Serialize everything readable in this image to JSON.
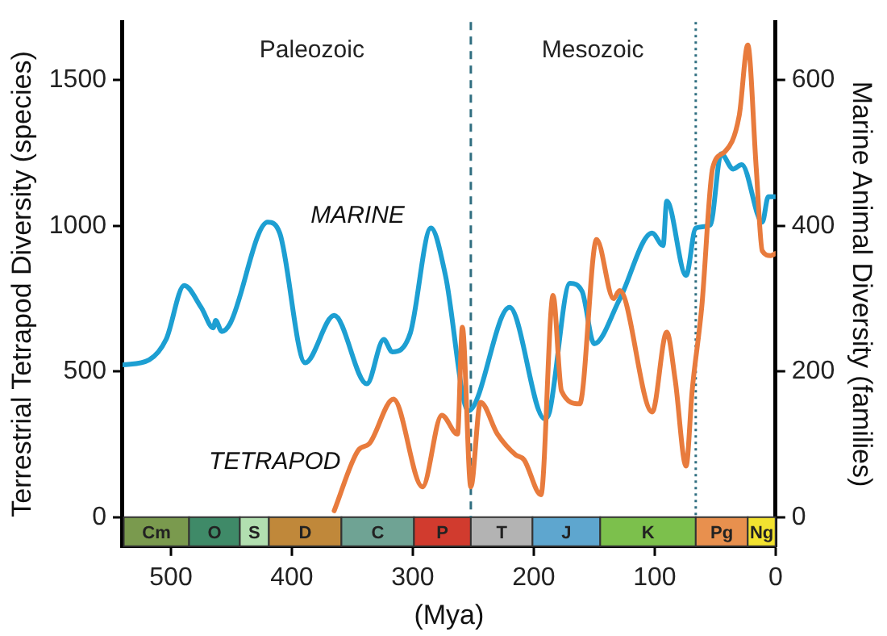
{
  "chart_data": {
    "type": "line",
    "xlabel": "(Mya)",
    "ylabel": "Terrestrial Tetrapod Diversity (species)",
    "y2label": "Marine Animal Diversity (families)",
    "xlim": [
      540,
      0
    ],
    "xticks": [
      500,
      400,
      300,
      200,
      100,
      0
    ],
    "ylim": [
      -100,
      1700
    ],
    "yticks": [
      0,
      500,
      1000,
      1500
    ],
    "y2lim": [
      -40,
      680
    ],
    "y2ticks": [
      0,
      200,
      400,
      600
    ],
    "grid": false,
    "legend": false,
    "marker": "none",
    "line_style": "solid",
    "series": [
      {
        "name": "MARINE",
        "color": "#1d9fd2",
        "axis": "y2",
        "x": [
          540,
          518,
          504,
          489,
          475,
          465,
          463,
          458,
          451,
          420,
          410,
          389,
          365,
          338,
          324,
          317,
          302,
          285,
          273,
          254,
          220,
          191,
          187,
          170,
          160,
          150,
          129,
          102,
          93,
          90,
          74,
          66,
          54,
          45,
          35,
          28,
          11,
          6,
          0
        ],
        "values": [
          209,
          216,
          244,
          318,
          288,
          260,
          270,
          255,
          266,
          405,
          390,
          212,
          277,
          183,
          244,
          227,
          253,
          397,
          332,
          146,
          288,
          135,
          144,
          321,
          310,
          238,
          299,
          390,
          373,
          434,
          332,
          397,
          401,
          499,
          478,
          484,
          405,
          440,
          440
        ]
      },
      {
        "name": "TETRAPOD",
        "color": "#e87b3d",
        "axis": "y",
        "x": [
          365,
          345,
          336,
          316,
          292,
          276,
          263,
          259,
          252,
          244,
          230,
          215,
          208,
          194,
          184,
          177,
          162,
          148,
          134,
          129,
          102,
          90,
          83,
          74,
          69,
          61,
          52,
          42,
          30,
          23,
          16,
          11,
          4,
          0
        ],
        "values": [
          22,
          230,
          252,
          405,
          104,
          350,
          285,
          652,
          104,
          394,
          285,
          214,
          197,
          77,
          761,
          433,
          389,
          953,
          750,
          778,
          361,
          635,
          471,
          175,
          433,
          723,
          1199,
          1254,
          1380,
          1621,
          1199,
          914,
          898,
          905
        ]
      }
    ],
    "ref_lines": [
      {
        "axis": "x",
        "value": 252,
        "label": null,
        "color": "#2f6e80",
        "line_style": "dashed"
      },
      {
        "axis": "x",
        "value": 66,
        "label": null,
        "color": "#2f6e80",
        "line_style": "dotted"
      }
    ],
    "bands": [
      {
        "axis": "x",
        "from": 539,
        "to": 485,
        "label": "Cm",
        "color": "#7a9a4e"
      },
      {
        "axis": "x",
        "from": 485,
        "to": 443,
        "label": "O",
        "color": "#3f8a68"
      },
      {
        "axis": "x",
        "from": 443,
        "to": 419,
        "label": "S",
        "color": "#b2dfb0"
      },
      {
        "axis": "x",
        "from": 419,
        "to": 359,
        "label": "D",
        "color": "#c0883a"
      },
      {
        "axis": "x",
        "from": 359,
        "to": 299,
        "label": "C",
        "color": "#6fa394"
      },
      {
        "axis": "x",
        "from": 299,
        "to": 252,
        "label": "P",
        "color": "#d13b2e"
      },
      {
        "axis": "x",
        "from": 252,
        "to": 201,
        "label": "T",
        "color": "#b3b3b3"
      },
      {
        "axis": "x",
        "from": 201,
        "to": 145,
        "label": "J",
        "color": "#5ea6cf"
      },
      {
        "axis": "x",
        "from": 145,
        "to": 66,
        "label": "K",
        "color": "#7cc04c"
      },
      {
        "axis": "x",
        "from": 66,
        "to": 23,
        "label": "Pg",
        "color": "#e8904e"
      },
      {
        "axis": "x",
        "from": 23,
        "to": 0,
        "label": "Ng",
        "color": "#f2e230"
      }
    ],
    "annotations": [
      "Paleozoic",
      "Mesozoic"
    ]
  }
}
